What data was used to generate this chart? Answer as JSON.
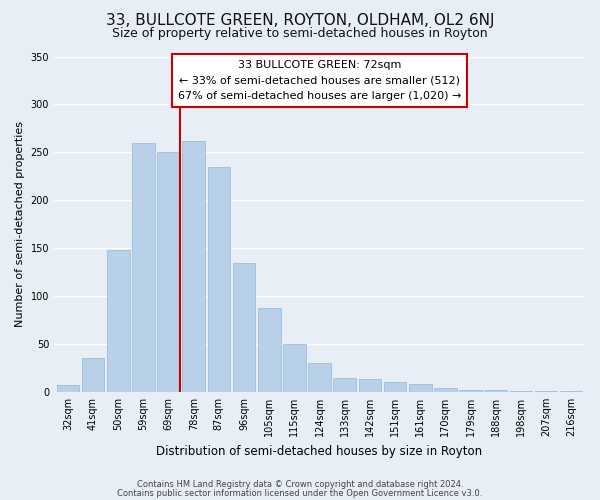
{
  "title": "33, BULLCOTE GREEN, ROYTON, OLDHAM, OL2 6NJ",
  "subtitle": "Size of property relative to semi-detached houses in Royton",
  "xlabel": "Distribution of semi-detached houses by size in Royton",
  "ylabel": "Number of semi-detached properties",
  "categories": [
    "32sqm",
    "41sqm",
    "50sqm",
    "59sqm",
    "69sqm",
    "78sqm",
    "87sqm",
    "96sqm",
    "105sqm",
    "115sqm",
    "124sqm",
    "133sqm",
    "142sqm",
    "151sqm",
    "161sqm",
    "170sqm",
    "179sqm",
    "188sqm",
    "198sqm",
    "207sqm",
    "216sqm"
  ],
  "values": [
    7,
    35,
    148,
    260,
    250,
    262,
    235,
    135,
    88,
    50,
    30,
    15,
    13,
    10,
    8,
    4,
    2,
    2,
    1,
    1,
    1
  ],
  "bar_color": "#b8d0e8",
  "bar_edge_color": "#90b8d8",
  "marker_color": "#cc0000",
  "annotation_title": "33 BULLCOTE GREEN: 72sqm",
  "annotation_line1": "← 33% of semi-detached houses are smaller (512)",
  "annotation_line2": "67% of semi-detached houses are larger (1,020) →",
  "annotation_box_color": "#ffffff",
  "annotation_box_edge": "#cc0000",
  "ylim": [
    0,
    350
  ],
  "yticks": [
    0,
    50,
    100,
    150,
    200,
    250,
    300,
    350
  ],
  "footer1": "Contains HM Land Registry data © Crown copyright and database right 2024.",
  "footer2": "Contains public sector information licensed under the Open Government Licence v3.0.",
  "background_color": "#e8eef5",
  "grid_color": "#ffffff",
  "title_fontsize": 11,
  "subtitle_fontsize": 9
}
